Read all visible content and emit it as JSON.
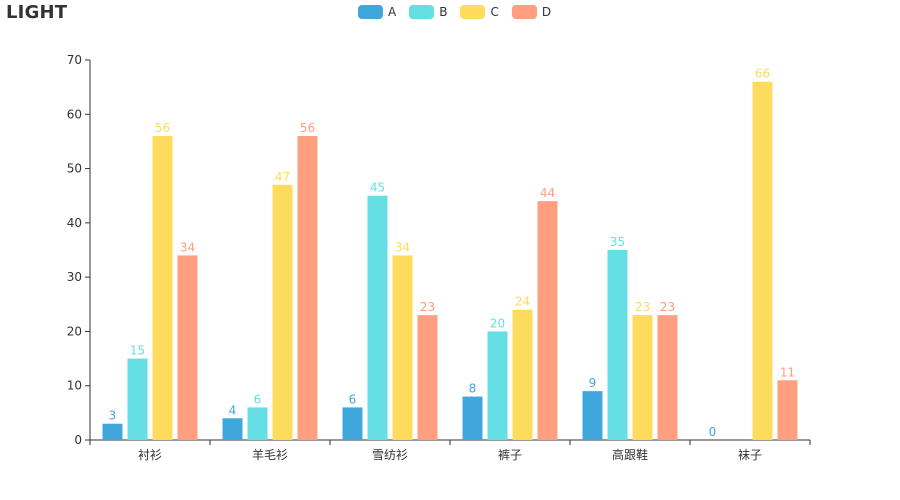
{
  "chart_data": {
    "type": "bar",
    "title": "LIGHT",
    "categories": [
      "衬衫",
      "羊毛衫",
      "雪纺衫",
      "裤子",
      "高跟鞋",
      "袜子"
    ],
    "series": [
      {
        "name": "A",
        "color": "#3fa7dc",
        "label_color": "#3fa7dc",
        "values": [
          3,
          4,
          6,
          8,
          9,
          0
        ]
      },
      {
        "name": "B",
        "color": "#66dfe4",
        "label_color": "#66dfe4",
        "values": [
          15,
          6,
          45,
          20,
          35,
          null
        ]
      },
      {
        "name": "C",
        "color": "#fddb5d",
        "label_color": "#fddb5d",
        "values": [
          56,
          47,
          34,
          24,
          23,
          66
        ]
      },
      {
        "name": "D",
        "color": "#ff9f7f",
        "label_color": "#ff9f7f",
        "values": [
          34,
          56,
          23,
          44,
          23,
          11
        ]
      }
    ],
    "ylim": [
      0,
      70
    ],
    "yticks": [
      0,
      10,
      20,
      30,
      40,
      50,
      60,
      70
    ],
    "xlabel": "",
    "ylabel": "",
    "legend_position": "top-center",
    "grid": false
  }
}
